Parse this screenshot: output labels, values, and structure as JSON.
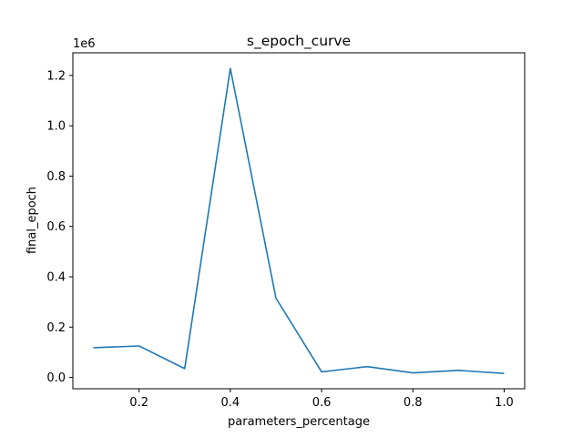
{
  "chart_data": {
    "type": "line",
    "title": "s_epoch_curve",
    "xlabel": "parameters_percentage",
    "ylabel": "final_epoch",
    "y_offset_label": "1e6",
    "xlim": [
      0.055,
      1.045
    ],
    "ylim": [
      -0.045,
      1.29
    ],
    "x_ticks": [
      0.2,
      0.4,
      0.6,
      0.8,
      1.0
    ],
    "x_tick_labels": [
      "0.2",
      "0.4",
      "0.6",
      "0.8",
      "1.0"
    ],
    "y_ticks": [
      0.0,
      0.2,
      0.4,
      0.6,
      0.8,
      1.0,
      1.2
    ],
    "y_tick_labels": [
      "0.0",
      "0.2",
      "0.4",
      "0.6",
      "0.8",
      "1.0",
      "1.2"
    ],
    "grid": false,
    "series": [
      {
        "color": "#1f77b4",
        "x": [
          0.1,
          0.2,
          0.3,
          0.4,
          0.5,
          0.6,
          0.7,
          0.8,
          0.9,
          1.0
        ],
        "y": [
          0.118,
          0.125,
          0.035,
          1.228,
          0.315,
          0.022,
          0.043,
          0.018,
          0.028,
          0.016
        ]
      }
    ]
  }
}
